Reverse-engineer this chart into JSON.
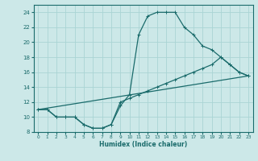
{
  "xlabel": "Humidex (Indice chaleur)",
  "bg_color": "#cce8e8",
  "line_color": "#1a6b6b",
  "grid_color": "#aad4d4",
  "xlim": [
    -0.5,
    23.5
  ],
  "ylim": [
    8,
    25
  ],
  "xticks": [
    0,
    1,
    2,
    3,
    4,
    5,
    6,
    7,
    8,
    9,
    10,
    11,
    12,
    13,
    14,
    15,
    16,
    17,
    18,
    19,
    20,
    21,
    22,
    23
  ],
  "yticks": [
    8,
    10,
    12,
    14,
    16,
    18,
    20,
    22,
    24
  ],
  "line1_x": [
    0,
    1,
    2,
    3,
    4,
    5,
    6,
    7,
    8,
    9,
    10,
    11,
    12,
    13,
    14,
    15,
    16,
    17,
    18,
    19,
    20,
    21,
    22,
    23
  ],
  "line1_y": [
    11,
    11,
    10,
    10,
    10,
    9,
    8.5,
    8.5,
    9,
    11.5,
    13,
    21,
    23.5,
    24,
    24,
    24,
    22,
    21,
    19.5,
    19,
    18,
    17,
    16,
    15.5
  ],
  "line2_x": [
    0,
    1,
    2,
    3,
    4,
    5,
    6,
    7,
    8,
    9,
    10,
    11,
    12,
    13,
    14,
    15,
    16,
    17,
    18,
    19,
    20,
    21,
    22,
    23
  ],
  "line2_y": [
    11,
    11,
    10,
    10,
    10,
    9,
    8.5,
    8.5,
    9,
    12,
    12.5,
    13,
    13.5,
    14,
    14.5,
    15,
    15.5,
    16,
    16.5,
    17,
    18,
    17,
    16,
    15.5
  ],
  "line3_x": [
    0,
    23
  ],
  "line3_y": [
    11,
    15.5
  ]
}
